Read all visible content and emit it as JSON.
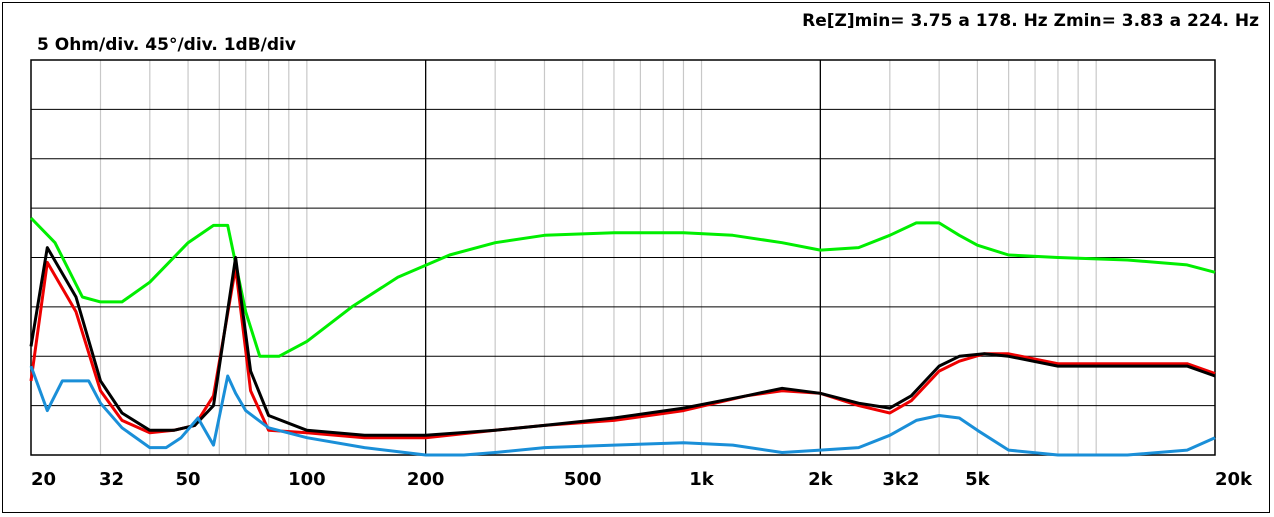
{
  "header": {
    "min_readout": "Re[Z]min= 3.75 a 178. Hz  Zmin= 3.83 a 224. Hz",
    "scale_label": "5 Ohm/div. 45°/div. 1dB/div"
  },
  "chart_data": {
    "type": "line",
    "x_scale": "log",
    "xlim": [
      20,
      20000
    ],
    "y_divisions": 8,
    "grid": true,
    "x_tick_labels": [
      {
        "label": "20",
        "x": 20
      },
      {
        "label": "32",
        "x": 32
      },
      {
        "label": "50",
        "x": 50
      },
      {
        "label": "100",
        "x": 100
      },
      {
        "label": "200",
        "x": 200
      },
      {
        "label": "500",
        "x": 500
      },
      {
        "label": "1k",
        "x": 1000
      },
      {
        "label": "2k",
        "x": 2000
      },
      {
        "label": "3k2",
        "x": 3200
      },
      {
        "label": "5k",
        "x": 5000
      },
      {
        "label": "20k",
        "x": 20000
      }
    ],
    "series": [
      {
        "color": "#00ee00",
        "x": [
          20,
          23,
          27,
          30,
          34,
          40,
          50,
          58,
          63,
          70,
          76,
          85,
          100,
          130,
          170,
          230,
          300,
          400,
          600,
          900,
          1200,
          1600,
          2000,
          2500,
          3000,
          3500,
          4000,
          4500,
          5000,
          6000,
          8000,
          12000,
          17000,
          20000
        ],
        "y": [
          4.8,
          4.3,
          3.2,
          3.1,
          3.1,
          3.5,
          4.3,
          4.65,
          4.65,
          2.9,
          2.0,
          2.0,
          2.3,
          3.0,
          3.6,
          4.05,
          4.3,
          4.45,
          4.5,
          4.5,
          4.45,
          4.3,
          4.15,
          4.2,
          4.45,
          4.7,
          4.7,
          4.45,
          4.25,
          4.05,
          4.0,
          3.95,
          3.85,
          3.7
        ]
      },
      {
        "color": "#ee0000",
        "x": [
          20,
          22,
          26,
          30,
          34,
          40,
          46,
          52,
          58,
          66,
          72,
          80,
          100,
          140,
          200,
          300,
          400,
          600,
          900,
          1300,
          1600,
          2000,
          2500,
          3000,
          3400,
          4000,
          4500,
          5200,
          6000,
          8000,
          12000,
          17000,
          20000
        ],
        "y": [
          1.5,
          3.9,
          2.9,
          1.3,
          0.7,
          0.45,
          0.5,
          0.6,
          1.2,
          3.8,
          1.3,
          0.5,
          0.45,
          0.35,
          0.35,
          0.5,
          0.6,
          0.7,
          0.9,
          1.2,
          1.3,
          1.25,
          1.0,
          0.85,
          1.1,
          1.7,
          1.9,
          2.05,
          2.05,
          1.85,
          1.85,
          1.85,
          1.65
        ]
      },
      {
        "color": "#000000",
        "x": [
          20,
          22,
          26,
          30,
          34,
          40,
          46,
          52,
          58,
          66,
          72,
          80,
          100,
          140,
          200,
          300,
          400,
          600,
          900,
          1300,
          1600,
          2000,
          2500,
          3000,
          3400,
          4000,
          4500,
          5200,
          6000,
          8000,
          12000,
          17000,
          20000
        ],
        "y": [
          2.2,
          4.2,
          3.2,
          1.5,
          0.85,
          0.5,
          0.5,
          0.6,
          1.0,
          4.0,
          1.7,
          0.8,
          0.5,
          0.4,
          0.4,
          0.5,
          0.6,
          0.75,
          0.95,
          1.2,
          1.35,
          1.25,
          1.05,
          0.95,
          1.2,
          1.8,
          2.0,
          2.05,
          2.0,
          1.8,
          1.8,
          1.8,
          1.6
        ]
      },
      {
        "color": "#1a8fd8",
        "x": [
          20,
          22,
          24,
          26,
          28,
          30,
          34,
          40,
          44,
          48,
          53,
          58,
          63,
          66,
          70,
          80,
          100,
          140,
          200,
          250,
          300,
          400,
          600,
          900,
          1200,
          1600,
          2000,
          2500,
          3000,
          3500,
          4000,
          4500,
          5000,
          6000,
          8000,
          12000,
          17000,
          20000
        ],
        "y": [
          1.8,
          0.9,
          1.5,
          1.5,
          1.5,
          1.05,
          0.55,
          0.15,
          0.15,
          0.35,
          0.75,
          0.2,
          1.6,
          1.25,
          0.9,
          0.55,
          0.35,
          0.15,
          0.0,
          0.0,
          0.05,
          0.15,
          0.2,
          0.25,
          0.2,
          0.05,
          0.1,
          0.15,
          0.4,
          0.7,
          0.8,
          0.75,
          0.5,
          0.1,
          0.0,
          0.0,
          0.1,
          0.35
        ]
      }
    ]
  }
}
